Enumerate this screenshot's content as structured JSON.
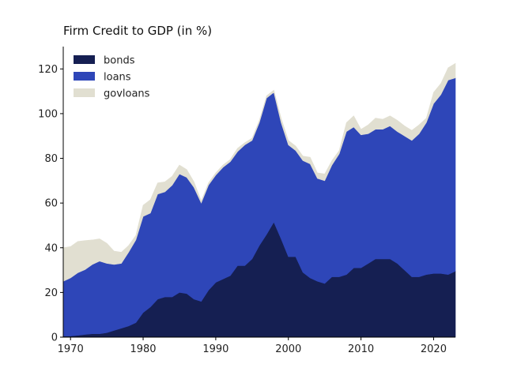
{
  "chart_data": {
    "type": "area",
    "stacked": true,
    "title": "Firm Credit to GDP (in %)",
    "xlabel": "",
    "ylabel": "",
    "xlim": [
      1969,
      2023
    ],
    "ylim": [
      0,
      130
    ],
    "x_ticks": [
      1970,
      1980,
      1990,
      2000,
      2010,
      2020
    ],
    "y_ticks": [
      0,
      20,
      40,
      60,
      80,
      100,
      120
    ],
    "grid": false,
    "legend_position": "top-left",
    "x": [
      1969,
      1970,
      1971,
      1972,
      1973,
      1974,
      1975,
      1976,
      1977,
      1978,
      1979,
      1980,
      1981,
      1982,
      1983,
      1984,
      1985,
      1986,
      1987,
      1988,
      1989,
      1990,
      1991,
      1992,
      1993,
      1994,
      1995,
      1996,
      1997,
      1998,
      1999,
      2000,
      2001,
      2002,
      2003,
      2004,
      2005,
      2006,
      2007,
      2008,
      2009,
      2010,
      2011,
      2012,
      2013,
      2014,
      2015,
      2016,
      2017,
      2018,
      2019,
      2020,
      2021,
      2022,
      2023
    ],
    "series": [
      {
        "name": "bonds",
        "color": "#151f52",
        "values": [
          0.5,
          0.5,
          0.8,
          1.2,
          1.5,
          1.5,
          2,
          3,
          4,
          5,
          6.5,
          11,
          13.5,
          17,
          18,
          18,
          20,
          19.5,
          17,
          16,
          21,
          24.5,
          26,
          27.5,
          32,
          32,
          35,
          41,
          46,
          51.5,
          44,
          36,
          36,
          29,
          26.5,
          25,
          24,
          27,
          27,
          28,
          31,
          31,
          33,
          35,
          35,
          35,
          33,
          30,
          27,
          27,
          28,
          28.5,
          28.5,
          28,
          29.5
        ]
      },
      {
        "name": "loans",
        "color": "#2e46b8",
        "values": [
          24.5,
          26,
          28,
          29,
          31,
          32.5,
          31,
          29.5,
          29,
          33,
          37,
          43,
          42,
          47,
          47,
          50,
          53,
          52,
          50,
          44,
          47,
          48,
          50,
          51,
          51,
          54,
          53,
          55,
          61,
          58,
          52,
          50,
          47.5,
          50,
          51,
          46,
          46,
          50,
          55,
          64,
          63,
          59.5,
          58,
          58,
          58,
          59.5,
          59,
          60,
          61,
          64,
          68,
          76,
          80,
          87,
          86.5
        ]
      },
      {
        "name": "govloans",
        "color": "#e1dfd1",
        "values": [
          15,
          14,
          14,
          13,
          11,
          10,
          9,
          6,
          5,
          3,
          2,
          5,
          6,
          5,
          4.5,
          4,
          4,
          3.5,
          2.5,
          1,
          1,
          1,
          1,
          1,
          1.5,
          1,
          1,
          1,
          1,
          1,
          2,
          2,
          2,
          2,
          3,
          2.5,
          3,
          2,
          1.5,
          4,
          5,
          2.5,
          4,
          5,
          4.5,
          4.5,
          5,
          4.5,
          4.5,
          4,
          2,
          5,
          5,
          5.5,
          6.5
        ]
      }
    ]
  }
}
